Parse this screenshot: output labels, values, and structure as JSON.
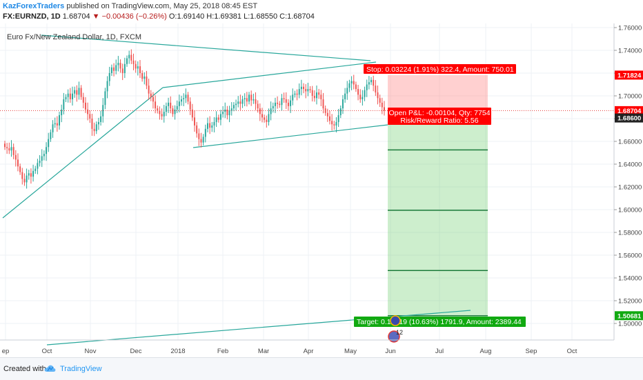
{
  "header": {
    "author": "KazForexTraders",
    "published": "published on TradingView.com, May 25, 2018 08:45 EST",
    "symbol": "FX:EURNZD, 1D",
    "last": "1.68704",
    "change": "−0.00436 (−0.26%)",
    "open_label": "O:",
    "open": "1.69140",
    "high_label": "H:",
    "high": "1.69381",
    "low_label": "L:",
    "low": "1.68550",
    "close_label": "C:",
    "close": "1.68704"
  },
  "chart_title": "Euro Fx/New Zealand Dollar, 1D, FXCM",
  "footer": {
    "created_with": "Created with",
    "brand": "TradingView"
  },
  "colors": {
    "up": "#26a69a",
    "down": "#ef5350",
    "stop": "#ff0000",
    "target": "#11a911",
    "trendline": "#26a69a",
    "axis_text": "#444444"
  },
  "chart_data": {
    "type": "candlestick",
    "ylim": [
      1.488,
      1.762
    ],
    "yticks": [
      "1.76000",
      "1.74000",
      "1.72000",
      "1.70000",
      "1.68000",
      "1.66000",
      "1.64000",
      "1.62000",
      "1.60000",
      "1.58000",
      "1.56000",
      "1.54000",
      "1.52000",
      "1.50000"
    ],
    "xticks": [
      "ep",
      "Oct",
      "Nov",
      "Dec",
      "2018",
      "Feb",
      "Mar",
      "Apr",
      "May",
      "Jun",
      "Jul",
      "Aug",
      "Sep",
      "Oct"
    ],
    "price_labels": [
      {
        "value": 1.71824,
        "text": "1.71824",
        "color": "#ff0000"
      },
      {
        "value": 1.68704,
        "text": "1.68704",
        "color": "#ff0000"
      },
      {
        "value": 1.686,
        "text": "1.68600",
        "color": "#222222"
      },
      {
        "value": 1.50681,
        "text": "1.50681",
        "color": "#11a911"
      }
    ],
    "position": {
      "entry": 1.686,
      "stop": 1.71824,
      "target": 1.50681,
      "stop_label": "Stop: 0.03224 (1.91%) 322.4, Amount: 750.01",
      "pnl_label": "Open P&L: -0.00104, Qty: 7754",
      "rr_label": "Risk/Reward Ratio: 5.56",
      "target_label": "Target: 0.17919 (10.63%) 1791.9, Amount: 2389.44",
      "levels": [
        1.6525,
        1.5995,
        1.5465
      ]
    },
    "badge_label": "12",
    "series": [
      {
        "name": "",
        "values": [
          1.655,
          1.654,
          1.652,
          1.655,
          1.648,
          1.644,
          1.638,
          1.633,
          1.627,
          1.624,
          1.63,
          1.632,
          1.629,
          1.634,
          1.636,
          1.641,
          1.643,
          1.647,
          1.649,
          1.655,
          1.662,
          1.668,
          1.675,
          1.676,
          1.674,
          1.683,
          1.688,
          1.697,
          1.699,
          1.702,
          1.697,
          1.702,
          1.705,
          1.701,
          1.707,
          1.699,
          1.694,
          1.688,
          1.684,
          1.68,
          1.671,
          1.669,
          1.675,
          1.677,
          1.682,
          1.692,
          1.704,
          1.713,
          1.72,
          1.725,
          1.722,
          1.727,
          1.729,
          1.724,
          1.72,
          1.728,
          1.733,
          1.736,
          1.731,
          1.728,
          1.724,
          1.726,
          1.72,
          1.715,
          1.717,
          1.709,
          1.702,
          1.699,
          1.695,
          1.689,
          1.687,
          1.684,
          1.682,
          1.686,
          1.691,
          1.694,
          1.689,
          1.684,
          1.688,
          1.691,
          1.695,
          1.697,
          1.698,
          1.701,
          1.695,
          1.688,
          1.681,
          1.674,
          1.667,
          1.662,
          1.659,
          1.664,
          1.671,
          1.676,
          1.672,
          1.674,
          1.677,
          1.681,
          1.679,
          1.684,
          1.686,
          1.688,
          1.683,
          1.687,
          1.689,
          1.692,
          1.693,
          1.695,
          1.693,
          1.697,
          1.698,
          1.695,
          1.701,
          1.696,
          1.697,
          1.693,
          1.689,
          1.684,
          1.681,
          1.679,
          1.677,
          1.684,
          1.689,
          1.691,
          1.694,
          1.693,
          1.692,
          1.698,
          1.697,
          1.694,
          1.691,
          1.696,
          1.701,
          1.702,
          1.701,
          1.706,
          1.708,
          1.706,
          1.704,
          1.706,
          1.705,
          1.7,
          1.698,
          1.703,
          1.701,
          1.697,
          1.689,
          1.685,
          1.682,
          1.678,
          1.675,
          1.674,
          1.677,
          1.683,
          1.689,
          1.697,
          1.702,
          1.707,
          1.711,
          1.713,
          1.71,
          1.706,
          1.701,
          1.697,
          1.699,
          1.705,
          1.71,
          1.712,
          1.714,
          1.709,
          1.703,
          1.698,
          1.694,
          1.69,
          1.687
        ]
      }
    ]
  }
}
